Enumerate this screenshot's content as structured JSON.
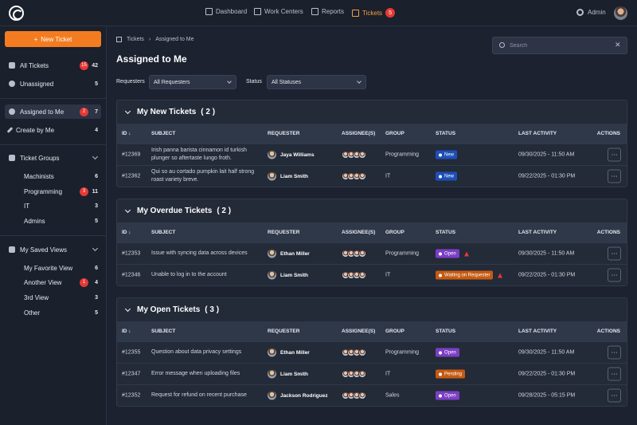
{
  "topnav": {
    "items": [
      {
        "label": "Dashboard",
        "icon": "dashboard-icon"
      },
      {
        "label": "Work Centers",
        "icon": "work-centers-icon"
      },
      {
        "label": "Reports",
        "icon": "reports-icon"
      },
      {
        "label": "Tickets",
        "icon": "tickets-icon",
        "badge": "5",
        "active": true
      }
    ],
    "admin_label": "Admin"
  },
  "sidebar": {
    "new_ticket_label": "New Ticket",
    "items": [
      {
        "label": "All Tickets",
        "badge": "15",
        "count": "42"
      },
      {
        "label": "Unassigned",
        "count": "5"
      },
      {
        "label": "Assigned to Me",
        "badge": "2",
        "count": "7",
        "active": true
      },
      {
        "label": "Create by Me",
        "count": "4"
      }
    ],
    "groups_label": "Ticket Groups",
    "groups": [
      {
        "label": "Machinists",
        "count": "6"
      },
      {
        "label": "Programming",
        "badge": "3",
        "count": "11"
      },
      {
        "label": "IT",
        "count": "3"
      },
      {
        "label": "Admins",
        "count": "5"
      }
    ],
    "views_label": "My Saved Views",
    "views": [
      {
        "label": "My Favorite View",
        "count": "6"
      },
      {
        "label": "Another View",
        "badge": "1",
        "count": "4"
      },
      {
        "label": "3rd View",
        "count": "3"
      },
      {
        "label": "Other",
        "count": "5"
      }
    ]
  },
  "breadcrumb": {
    "root": "Tickets",
    "current": "Assigned to Me"
  },
  "page_title": "Assigned to Me",
  "search": {
    "placeholder": "Search",
    "value": ""
  },
  "filters": {
    "requesters_label": "Requesters",
    "requesters_value": "All Requesters",
    "status_label": "Status",
    "status_value": "All Statuses"
  },
  "columns": [
    "ID",
    "SUBJECT",
    "REQUESTER",
    "ASSIGNEE(S)",
    "GROUP",
    "STATUS",
    "LAST ACTIVITY",
    "ACTIONS"
  ],
  "colors": {
    "accent": "#f47c20",
    "new": "#1e4fb8",
    "open": "#7b3fc4",
    "waiting": "#c55a12",
    "pending": "#c55a12",
    "alert": "#e53935"
  },
  "sections": [
    {
      "title": "My New Tickets",
      "count": "( 2 )",
      "rows": [
        {
          "id": "#12369",
          "subject": "Irish panna barista cinnamon id turkish plunger so aftertaste lungo froth.",
          "requester": "Jaya Williams",
          "group": "Programming",
          "status": "New",
          "status_color": "#1e4fb8",
          "last_activity": "09/30/2025 - 11:50 AM"
        },
        {
          "id": "#12362",
          "subject": "Qui so au cortado pumpkin lait half strong roast variety breve.",
          "requester": "Liam Smith",
          "group": "IT",
          "status": "New",
          "status_color": "#1e4fb8",
          "last_activity": "09/22/2025 - 01:30 PM"
        }
      ]
    },
    {
      "title": "My Overdue Tickets",
      "count": "( 2 )",
      "rows": [
        {
          "id": "#12353",
          "subject": "Issue with syncing data across devices",
          "requester": "Ethan Miller",
          "group": "Programming",
          "status": "Open",
          "status_color": "#7b3fc4",
          "alert": true,
          "last_activity": "09/30/2025 - 11:50 AM"
        },
        {
          "id": "#12346",
          "subject": "Unable to log in to the account",
          "requester": "Liam Smith",
          "group": "IT",
          "status": "Waiting on Requester",
          "status_color": "#c55a12",
          "alert": true,
          "last_activity": "09/22/2025 - 01:30 PM"
        }
      ]
    },
    {
      "title": "My Open Tickets",
      "count": "( 3 )",
      "rows": [
        {
          "id": "#12355",
          "subject": "Question about data privacy settings",
          "requester": "Ethan Miller",
          "group": "Programming",
          "status": "Open",
          "status_color": "#7b3fc4",
          "last_activity": "09/30/2025 - 11:50 AM"
        },
        {
          "id": "#12347",
          "subject": "Error message when uploading files",
          "requester": "Liam Smith",
          "group": "IT",
          "status": "Pending",
          "status_color": "#c55a12",
          "last_activity": "09/22/2025 - 01:30 PM"
        },
        {
          "id": "#12352",
          "subject": "Request for refund on recent purchase",
          "requester": "Jackson Rodriguez",
          "group": "Sales",
          "status": "Open",
          "status_color": "#7b3fc4",
          "last_activity": "09/28/2025 - 05:15 PM"
        }
      ]
    }
  ],
  "actions_label": "···"
}
